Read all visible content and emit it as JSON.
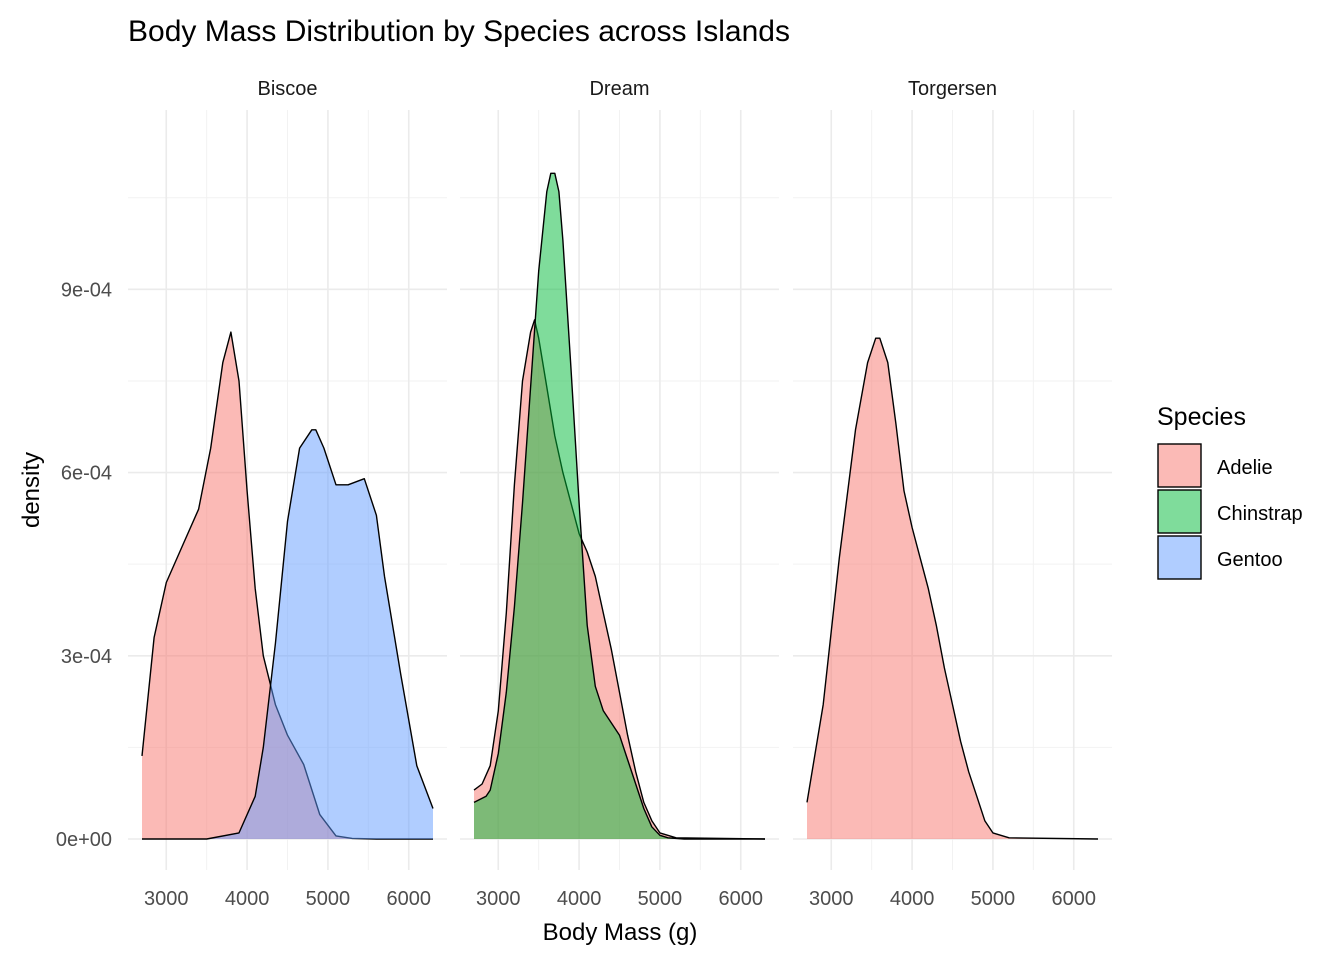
{
  "chart_data": {
    "type": "area",
    "title": "Body Mass Distribution by Species across Islands",
    "xlabel": "Body Mass (g)",
    "ylabel": "density",
    "xlim": [
      2700,
      6300
    ],
    "ylim": [
      0,
      0.00112
    ],
    "x_ticks": [
      3000,
      4000,
      5000,
      6000
    ],
    "x_tick_labels": [
      "3000",
      "4000",
      "5000",
      "6000"
    ],
    "y_ticks": [
      0,
      0.0003,
      0.0006,
      0.0009
    ],
    "y_tick_labels": [
      "0e+00",
      "3e-04",
      "6e-04",
      "9e-04"
    ],
    "grid": true,
    "legend": {
      "title": "Species",
      "position": "right",
      "entries": [
        {
          "label": "Adelie",
          "color": "#F8766D"
        },
        {
          "label": "Chinstrap",
          "color": "#00BA38"
        },
        {
          "label": "Gentoo",
          "color": "#619CFF"
        }
      ]
    },
    "panels": [
      {
        "name": "Biscoe",
        "series": [
          {
            "name": "Adelie",
            "color": "#F8766D",
            "x": [
              2700,
              2850,
              3000,
              3200,
              3400,
              3550,
              3700,
              3800,
              3900,
              4000,
              4100,
              4200,
              4350,
              4500,
              4700,
              4900,
              5100,
              5300,
              5600,
              6000,
              6300
            ],
            "y": [
              0.000136,
              0.00033,
              0.00042,
              0.00048,
              0.00054,
              0.00064,
              0.00078,
              0.00083,
              0.00075,
              0.00057,
              0.00041,
              0.0003,
              0.00022,
              0.00017,
              0.000122,
              4e-05,
              5e-06,
              1e-06,
              0,
              0,
              0
            ]
          },
          {
            "name": "Gentoo",
            "color": "#619CFF",
            "x": [
              2700,
              3500,
              3900,
              4100,
              4200,
              4350,
              4500,
              4650,
              4800,
              4850,
              4950,
              5100,
              5250,
              5450,
              5600,
              5700,
              5900,
              6100,
              6300
            ],
            "y": [
              0,
              0,
              1e-05,
              7e-05,
              0.00015,
              0.00032,
              0.00052,
              0.00064,
              0.00067,
              0.00067,
              0.00064,
              0.00058,
              0.00058,
              0.00059,
              0.00053,
              0.00043,
              0.00027,
              0.00012,
              5e-05
            ]
          }
        ]
      },
      {
        "name": "Dream",
        "series": [
          {
            "name": "Adelie",
            "color": "#F8766D",
            "x": [
              2700,
              2800,
              2900,
              3000,
              3100,
              3200,
              3300,
              3400,
              3450,
              3500,
              3600,
              3700,
              3800,
              3900,
              4000,
              4100,
              4200,
              4300,
              4400,
              4500,
              4600,
              4700,
              4800,
              4900,
              5000,
              5200,
              6300
            ],
            "y": [
              8e-05,
              9e-05,
              0.00012,
              0.00021,
              0.00037,
              0.00058,
              0.00075,
              0.00083,
              0.00085,
              0.00082,
              0.00074,
              0.00066,
              0.0006,
              0.00055,
              0.0005,
              0.00047,
              0.00043,
              0.00037,
              0.00031,
              0.00024,
              0.00017,
              0.00011,
              6e-05,
              3e-05,
              1e-05,
              2e-06,
              0
            ]
          },
          {
            "name": "Chinstrap",
            "color": "#00BA38",
            "x": [
              2700,
              2850,
              2900,
              3000,
              3100,
              3200,
              3300,
              3400,
              3500,
              3600,
              3650,
              3700,
              3750,
              3800,
              3900,
              4000,
              4100,
              4200,
              4300,
              4400,
              4500,
              4600,
              4700,
              4800,
              4900,
              5000,
              5100,
              5300,
              6300
            ],
            "y": [
              6e-05,
              7e-05,
              8e-05,
              0.00014,
              0.00024,
              0.00038,
              0.00055,
              0.00074,
              0.00093,
              0.00106,
              0.00109,
              0.00109,
              0.00106,
              0.00098,
              0.00077,
              0.00055,
              0.00035,
              0.00025,
              0.00021,
              0.00019,
              0.00017,
              0.00013,
              9e-05,
              5e-05,
              2e-05,
              6e-06,
              2e-06,
              0,
              0
            ]
          }
        ]
      },
      {
        "name": "Torgersen",
        "series": [
          {
            "name": "Adelie",
            "color": "#F8766D",
            "x": [
              2700,
              2900,
              3100,
              3300,
              3450,
              3550,
              3600,
              3700,
              3800,
              3900,
              4000,
              4100,
              4200,
              4300,
              4400,
              4500,
              4600,
              4700,
              4800,
              4900,
              5000,
              5200,
              6300
            ],
            "y": [
              6e-05,
              0.00022,
              0.00046,
              0.00067,
              0.00078,
              0.00082,
              0.00082,
              0.00078,
              0.00068,
              0.00057,
              0.00051,
              0.00046,
              0.00041,
              0.00035,
              0.00028,
              0.00022,
              0.00016,
              0.00011,
              7e-05,
              3e-05,
              1e-05,
              2e-06,
              0
            ]
          }
        ]
      }
    ]
  }
}
